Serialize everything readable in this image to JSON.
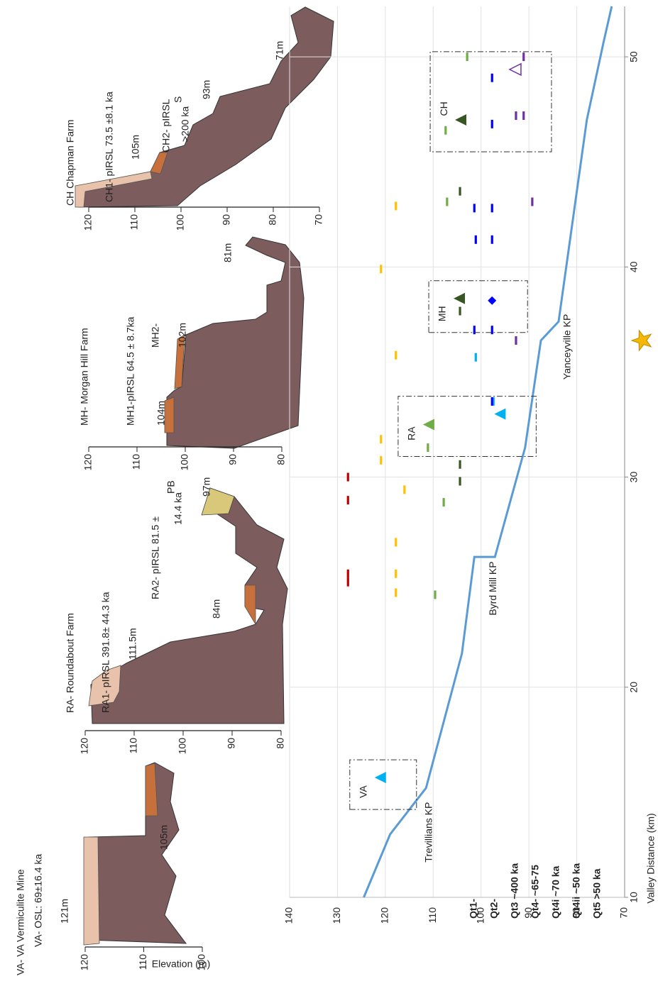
{
  "chart_data": {
    "type": "line",
    "xlabel": "Valley Distance (km)",
    "ylabel": "Elevation (m)",
    "xlim": [
      10,
      52.4
    ],
    "ylim": [
      70,
      140
    ],
    "xticks": [
      10,
      20,
      30,
      40,
      50
    ],
    "yticks": [
      70,
      80,
      90,
      100,
      110,
      120,
      130,
      140
    ],
    "grid": true,
    "series": [
      {
        "type": "line",
        "color": "#5b9bd5",
        "x": [
          10,
          13,
          15.2,
          21.6,
          26.2,
          26.2,
          31.4,
          36.5,
          37.4,
          47,
          50.7,
          52.4
        ],
        "values": [
          124.5,
          119,
          111.5,
          104,
          101.4,
          97.1,
          90.8,
          87.5,
          83.8,
          77.9,
          74.4,
          72.7
        ]
      },
      {
        "type": "scatter",
        "name": "Qt1-",
        "color": "#c00000",
        "x": [
          25.0,
          25.4,
          28.9,
          30.0
        ],
        "values": [
          127.8,
          127.8,
          127.8,
          127.8
        ]
      },
      {
        "type": "scatter",
        "name": "Qt2-",
        "color": "#ffc000",
        "x": [
          24.5,
          25.4,
          26.9,
          29.4,
          30.8,
          31.8,
          35.8,
          39.9,
          42.9
        ],
        "values": [
          117.8,
          117.8,
          117.8,
          116,
          120.9,
          120.9,
          117.8,
          120.9,
          117.8
        ]
      },
      {
        "type": "scatter",
        "name": "Qt3 ~400 ka",
        "color": "#70ad47",
        "x": [
          24.4,
          28.8,
          31.4,
          43.1,
          46.5,
          50
        ],
        "values": [
          109.6,
          107.8,
          111.1,
          107.1,
          107.4,
          102.9
        ]
      },
      {
        "type": "scatter",
        "name": "Qt4- ~65-75",
        "color": "#375623",
        "x": [
          29.8,
          30.6,
          37.9,
          43.6
        ],
        "values": [
          104.4,
          104.4,
          104.4,
          104.4
        ]
      },
      {
        "type": "scatter",
        "name": "Qt4i ~70 ka",
        "color": "#00b0f0",
        "x": [
          33.6,
          35.7
        ],
        "values": [
          97.4,
          101.1
        ]
      },
      {
        "type": "scatter",
        "name": "Qt4ii ~50 ka",
        "color": "#0000ff",
        "x": [
          33.6,
          37.0,
          37.0,
          41.3,
          41.3,
          42.8,
          42.8,
          46.8,
          49.0
        ],
        "values": [
          97.7,
          101.4,
          97.7,
          101.1,
          97.7,
          101.4,
          97.7,
          97.7,
          97.7
        ]
      },
      {
        "type": "scatter",
        "name": "Qt5 >50 ka",
        "color": "#7030a0",
        "x": [
          36.5,
          43.1,
          47.2,
          47.2,
          50
        ],
        "values": [
          92.7,
          89.3,
          92.7,
          91.1,
          91.1
        ]
      }
    ],
    "annotations": [
      {
        "text": "Trevillians KP",
        "x": 13.1,
        "y": 110.8
      },
      {
        "text": "Byrd Mill KP",
        "x": 24.7,
        "y": 97.4
      },
      {
        "text": "Yanceyville KP",
        "x": 36.2,
        "y": 81.9
      }
    ],
    "sites": [
      {
        "label": "VA",
        "markers": [
          {
            "x": 15.7,
            "y": 120.9,
            "color": "#00b0f0",
            "shape": "triangle"
          }
        ]
      },
      {
        "label": "RA",
        "markers": [
          {
            "x": 32.5,
            "y": 110.8,
            "color": "#70ad47",
            "shape": "triangle"
          },
          {
            "x": 33,
            "y": 95.9,
            "color": "#00b0f0",
            "shape": "triangle"
          }
        ]
      },
      {
        "label": "MH",
        "markers": [
          {
            "x": 38.5,
            "y": 104.4,
            "color": "#375623",
            "shape": "triangle"
          },
          {
            "x": 38.4,
            "y": 97.7,
            "color": "#0000ff",
            "shape": "diamond"
          }
        ]
      },
      {
        "label": "CH",
        "markers": [
          {
            "x": 47,
            "y": 104.1,
            "color": "#375623",
            "shape": "triangle"
          },
          {
            "x": 49.4,
            "y": 92.7,
            "color": "#7030a0",
            "shape": "open-triangle"
          }
        ]
      }
    ],
    "star": {
      "x": 36.5,
      "color": "#f5b800"
    }
  },
  "profiles": [
    {
      "title": "VA- VA Vermiculite Mine",
      "yticks": [
        120,
        110,
        100
      ],
      "labels": [
        "VA- OSL: 69±16.4 ka",
        "121m",
        "105m"
      ]
    },
    {
      "title": "RA- Roundabout Farm",
      "yticks": [
        120,
        110,
        100,
        90,
        80
      ],
      "labels": [
        "RA1- pIRSL 391.8± 44.3 ka",
        "111.5m",
        "RA2- pIRSL 81.5 ±",
        "14.4 ka",
        "PB",
        "97m",
        "84m"
      ]
    },
    {
      "title": "MH- Morgan Hill Farm",
      "yticks": [
        120,
        110,
        100,
        90,
        80
      ],
      "labels": [
        "MH1-pIRSL 64.5 ± 8.7ka",
        "104m",
        "MH2-",
        "102m",
        "81m"
      ]
    },
    {
      "title": "CH Chapman Farm",
      "yticks": [
        120,
        110,
        100,
        90,
        80,
        70
      ],
      "labels": [
        "CH1- pIRSL 73.5 ±8.1 ka",
        "105m",
        "CH2- pIRSL",
        ">200 ka",
        "S",
        "93m",
        "71m"
      ]
    }
  ]
}
